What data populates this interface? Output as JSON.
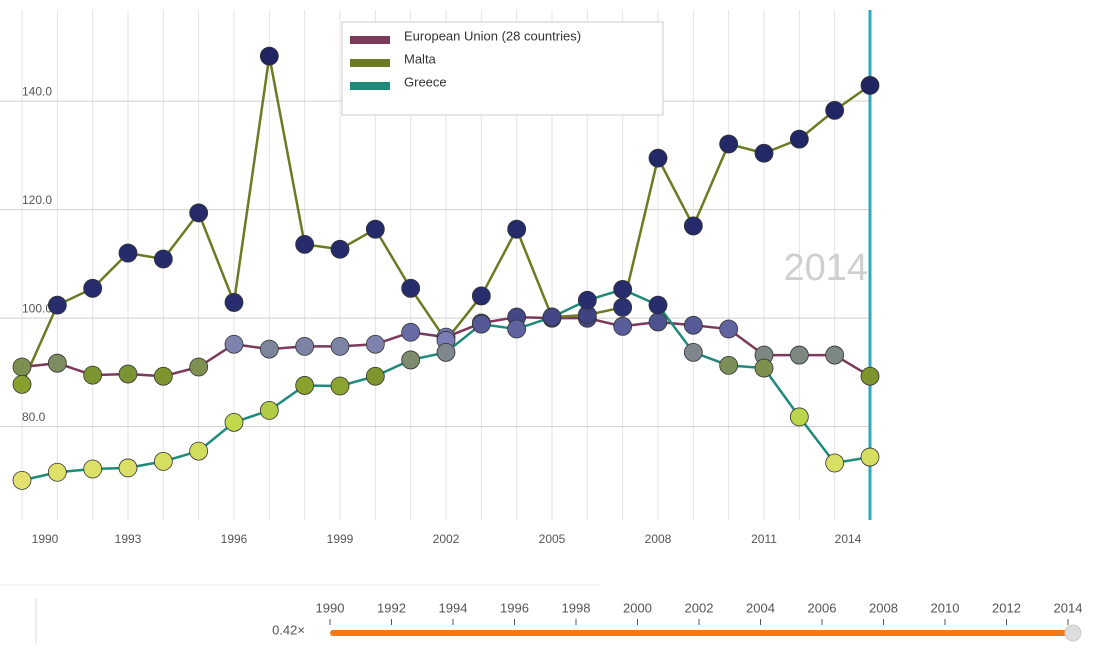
{
  "chart_data": {
    "type": "line",
    "x": [
      1990,
      1991,
      1992,
      1993,
      1994,
      1995,
      1996,
      1997,
      1998,
      1999,
      2000,
      2001,
      2002,
      2003,
      2004,
      2005,
      2006,
      2007,
      2008,
      2009,
      2010,
      2011,
      2012,
      2013,
      2014
    ],
    "xlim": [
      1990,
      2014
    ],
    "xticks": [
      1990,
      1993,
      1996,
      1999,
      2002,
      2005,
      2008,
      2011,
      2014
    ],
    "ylim": [
      62.8,
      156.8
    ],
    "yticks": [
      {
        "value": 80,
        "label": "80.0"
      },
      {
        "value": 100,
        "label": "100.0"
      },
      {
        "value": 120,
        "label": "120.0"
      },
      {
        "value": 140,
        "label": "140.0"
      }
    ],
    "grid": true,
    "legend": "top",
    "series": [
      {
        "name": "European Union (28 countries)",
        "color": "#7b3a5a",
        "values": [
          91.0,
          91.7,
          89.5,
          89.7,
          89.3,
          91.0,
          95.2,
          94.3,
          94.8,
          94.8,
          95.2,
          97.4,
          96.5,
          99.1,
          100.2,
          100.0,
          100.0,
          98.5,
          99.3,
          98.7,
          98.0,
          93.2,
          93.2,
          93.2,
          89.3
        ]
      },
      {
        "name": "Malta",
        "color": "#6b7a23",
        "values": [
          87.8,
          102.4,
          105.5,
          112.0,
          110.9,
          119.4,
          102.9,
          148.3,
          113.6,
          112.7,
          116.4,
          105.5,
          95.9,
          104.1,
          116.4,
          100.2,
          100.6,
          102.0,
          129.5,
          117.0,
          132.1,
          130.4,
          133.0,
          138.3,
          142.9
        ]
      },
      {
        "name": "Greece",
        "color": "#1f8a7a",
        "values": [
          70.1,
          71.6,
          72.2,
          72.4,
          73.6,
          75.5,
          80.8,
          83.0,
          87.6,
          87.5,
          89.3,
          92.3,
          93.7,
          98.9,
          98.0,
          100.2,
          103.3,
          105.3,
          102.4,
          93.7,
          91.3,
          90.8,
          81.8,
          73.3,
          74.4
        ]
      }
    ],
    "current_label": "2014",
    "current_x": 2014,
    "slider": {
      "speed": "0.42×",
      "years": [
        1990,
        1992,
        1994,
        1996,
        1998,
        2000,
        2002,
        2004,
        2006,
        2008,
        2010,
        2012,
        2014
      ]
    }
  }
}
